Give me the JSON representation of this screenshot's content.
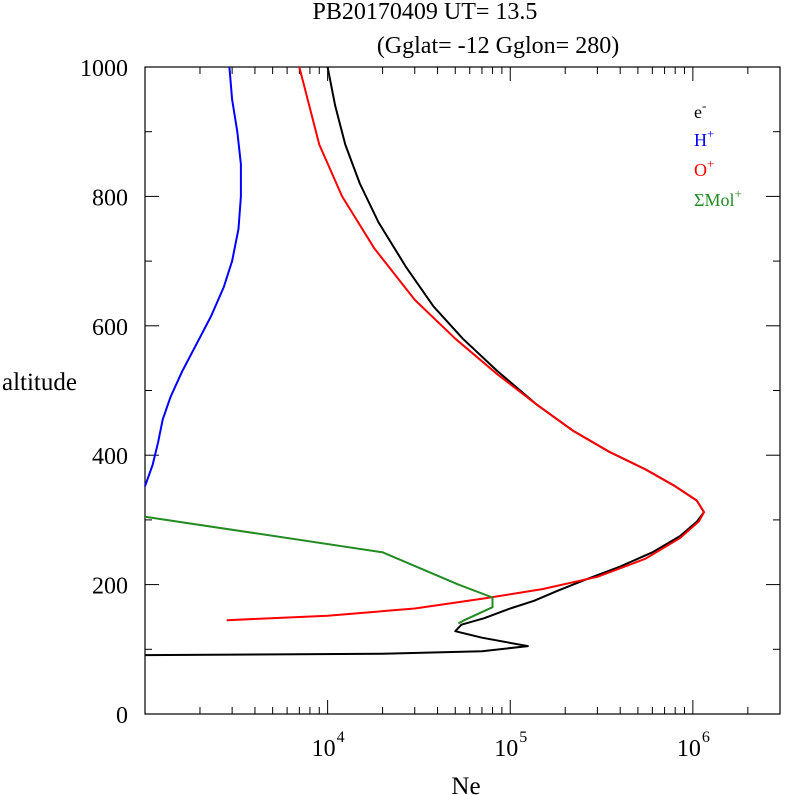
{
  "chart_data": {
    "type": "line",
    "title_line1": "PB20170409   UT=  13.5",
    "title_line2": "(Gglat= -12   Gglon=  280)",
    "xlabel": "Ne",
    "ylabel": "altitude",
    "xscale": "log",
    "xlim": [
      1000,
      3000000
    ],
    "ylim": [
      0,
      1000
    ],
    "x_ticks": [
      {
        "value": 10000,
        "base": "10",
        "exp": "4"
      },
      {
        "value": 100000,
        "base": "10",
        "exp": "5"
      },
      {
        "value": 1000000,
        "base": "10",
        "exp": "6"
      }
    ],
    "y_ticks": [
      "0",
      "200",
      "400",
      "600",
      "800",
      "1000"
    ],
    "legend_position": "top-right",
    "series": [
      {
        "name": "e",
        "sup": "-",
        "color": "#000000",
        "points": [
          [
            1000,
            91
          ],
          [
            20000,
            93
          ],
          [
            70000,
            97
          ],
          [
            125000,
            105
          ],
          [
            70000,
            118
          ],
          [
            50000,
            128
          ],
          [
            54000,
            138
          ],
          [
            72000,
            148
          ],
          [
            100000,
            163
          ],
          [
            135000,
            175
          ],
          [
            180000,
            190
          ],
          [
            260000,
            208
          ],
          [
            400000,
            228
          ],
          [
            600000,
            250
          ],
          [
            850000,
            275
          ],
          [
            1050000,
            297
          ],
          [
            1150000,
            312
          ],
          [
            1050000,
            330
          ],
          [
            800000,
            352
          ],
          [
            550000,
            378
          ],
          [
            350000,
            405
          ],
          [
            220000,
            438
          ],
          [
            140000,
            478
          ],
          [
            85000,
            530
          ],
          [
            55000,
            580
          ],
          [
            38000,
            630
          ],
          [
            27000,
            690
          ],
          [
            19000,
            760
          ],
          [
            15000,
            820
          ],
          [
            12500,
            880
          ],
          [
            11000,
            940
          ],
          [
            10000,
            1000
          ]
        ]
      },
      {
        "name": "H",
        "sup": "+",
        "color": "#0000ff",
        "points": [
          [
            1000,
            352
          ],
          [
            1100,
            385
          ],
          [
            1180,
            420
          ],
          [
            1250,
            455
          ],
          [
            1380,
            490
          ],
          [
            1600,
            530
          ],
          [
            1900,
            570
          ],
          [
            2300,
            615
          ],
          [
            2700,
            660
          ],
          [
            3000,
            700
          ],
          [
            3250,
            750
          ],
          [
            3350,
            800
          ],
          [
            3350,
            850
          ],
          [
            3200,
            900
          ],
          [
            3000,
            950
          ],
          [
            2900,
            1000
          ]
        ]
      },
      {
        "name": "O",
        "sup": "+",
        "color": "#ff0000",
        "points": [
          [
            2800,
            145
          ],
          [
            10000,
            152
          ],
          [
            30000,
            163
          ],
          [
            70000,
            178
          ],
          [
            150000,
            193
          ],
          [
            300000,
            212
          ],
          [
            550000,
            240
          ],
          [
            850000,
            272
          ],
          [
            1080000,
            298
          ],
          [
            1150000,
            312
          ],
          [
            1050000,
            330
          ],
          [
            800000,
            352
          ],
          [
            550000,
            378
          ],
          [
            350000,
            405
          ],
          [
            220000,
            438
          ],
          [
            140000,
            478
          ],
          [
            85000,
            525
          ],
          [
            50000,
            580
          ],
          [
            30000,
            640
          ],
          [
            18000,
            720
          ],
          [
            12000,
            800
          ],
          [
            9000,
            880
          ],
          [
            7000,
            1000
          ]
        ]
      },
      {
        "name": "ΣMol",
        "sup": "+",
        "color": "#228b22",
        "points": [
          [
            1000,
            305
          ],
          [
            20000,
            250
          ],
          [
            52000,
            200
          ],
          [
            80000,
            180
          ],
          [
            80000,
            165
          ],
          [
            56000,
            145
          ],
          [
            52000,
            140
          ]
        ]
      }
    ]
  }
}
